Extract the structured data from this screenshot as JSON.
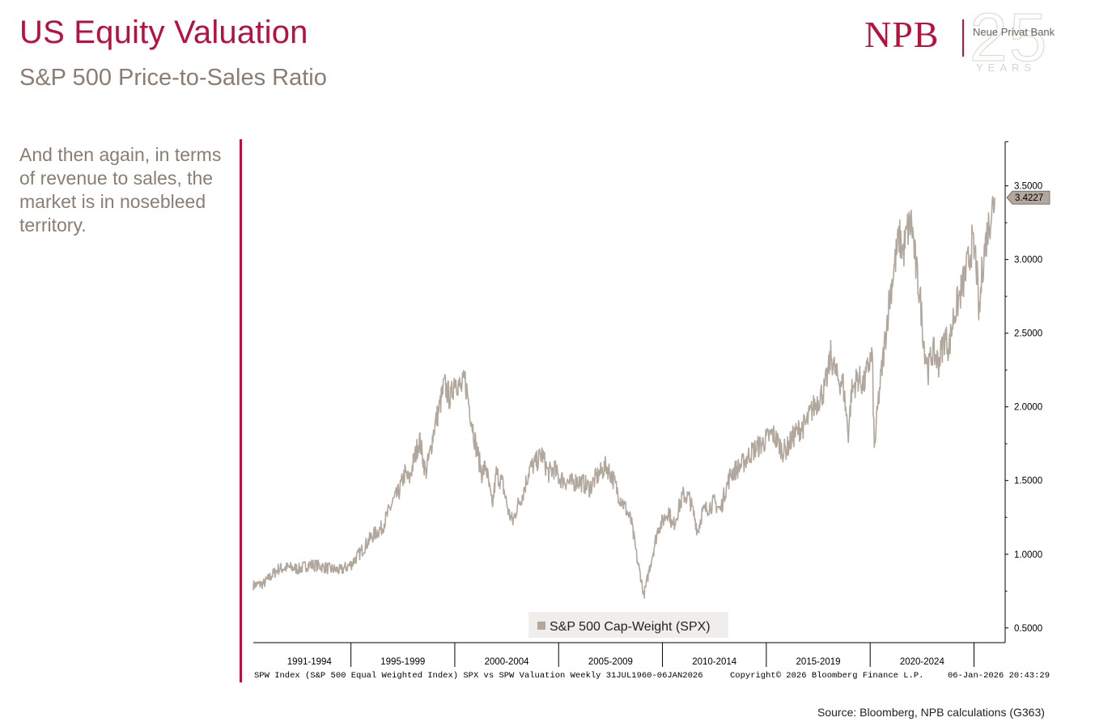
{
  "header": {
    "title": "US Equity Valuation",
    "subtitle": "S&P 500 Price-to-Sales Ratio"
  },
  "logo": {
    "mark": "NPB",
    "bank_name": "Neue Privat Bank",
    "anniversary": "25",
    "years": "YEARS",
    "color": "#b5123e"
  },
  "commentary": "And then again, in terms of revenue to sales, the market is in nosebleed territory.",
  "source": "Source: Bloomberg, NPB calculations (G363)",
  "colors": {
    "accent": "#b5123e",
    "series": "#b2a79d",
    "text_muted": "#8b7d72"
  },
  "chart_data": {
    "type": "line",
    "title": "S&P 500 Price-to-Sales Ratio",
    "xlabel": "",
    "ylabel": "",
    "x_range": [
      1990.3,
      2026.5
    ],
    "ylim": [
      0.4,
      3.8
    ],
    "y_ticks": [
      "3.5000",
      "3.0000",
      "2.5000",
      "2.0000",
      "1.5000",
      "1.0000",
      "0.5000"
    ],
    "y_tick_values": [
      3.5,
      3.0,
      2.5,
      2.0,
      1.5,
      1.0,
      0.5
    ],
    "x_period_labels": [
      "1991-1994",
      "1995-1999",
      "2000-2004",
      "2005-2009",
      "2010-2014",
      "2015-2019",
      "2020-2024"
    ],
    "x_period_starts": [
      1991,
      1995,
      2000,
      2005,
      2010,
      2015,
      2020,
      2025
    ],
    "last_value_label": "3.4227",
    "legend": "S&P 500 Cap-Weight (SPX)",
    "legend_position": "bottom-center",
    "footer_left": "SPW Index (S&P 500 Equal Weighted Index) SPX vs SPW Valuation Weekly 31JUL1960-06JAN2026",
    "footer_center": "Copyright© 2026 Bloomberg Finance L.P.",
    "footer_right": "06-Jan-2026 20:43:29",
    "series": [
      {
        "name": "S&P 500 Cap-Weight (SPX)",
        "x": [
          1990.3,
          1990.8,
          1991.0,
          1991.5,
          1992.0,
          1992.5,
          1993.0,
          1993.5,
          1994.0,
          1994.5,
          1995.0,
          1995.5,
          1996.0,
          1996.5,
          1997.0,
          1997.3,
          1997.6,
          1997.8,
          1998.0,
          1998.3,
          1998.6,
          1998.8,
          1999.0,
          1999.3,
          1999.5,
          1999.8,
          2000.0,
          2000.3,
          2000.5,
          2000.8,
          2001.0,
          2001.3,
          2001.5,
          2001.8,
          2002.0,
          2002.3,
          2002.6,
          2002.8,
          2003.0,
          2003.3,
          2003.6,
          2003.9,
          2004.2,
          2004.5,
          2004.8,
          2005.0,
          2005.3,
          2005.6,
          2005.9,
          2006.2,
          2006.5,
          2006.8,
          2007.0,
          2007.3,
          2007.6,
          2007.9,
          2008.2,
          2008.5,
          2008.8,
          2008.95,
          2009.1,
          2009.2,
          2009.4,
          2009.6,
          2009.8,
          2010.0,
          2010.3,
          2010.5,
          2010.8,
          2011.0,
          2011.3,
          2011.6,
          2011.7,
          2011.9,
          2012.2,
          2012.5,
          2012.8,
          2013.0,
          2013.3,
          2013.6,
          2013.9,
          2014.2,
          2014.5,
          2014.8,
          2015.0,
          2015.3,
          2015.6,
          2015.8,
          2016.0,
          2016.3,
          2016.6,
          2016.9,
          2017.2,
          2017.5,
          2017.8,
          2018.0,
          2018.1,
          2018.4,
          2018.7,
          2018.95,
          2019.1,
          2019.4,
          2019.7,
          2019.95,
          2020.1,
          2020.2,
          2020.4,
          2020.6,
          2020.9,
          2021.1,
          2021.4,
          2021.6,
          2021.8,
          2022.0,
          2022.2,
          2022.4,
          2022.6,
          2022.8,
          2023.0,
          2023.3,
          2023.6,
          2023.8,
          2024.0,
          2024.3,
          2024.6,
          2024.9,
          2025.1,
          2025.25,
          2025.4,
          2025.6,
          2025.8,
          2026.0
        ],
        "values": [
          0.79,
          0.8,
          0.83,
          0.9,
          0.91,
          0.9,
          0.93,
          0.92,
          0.9,
          0.89,
          0.93,
          1.02,
          1.12,
          1.18,
          1.35,
          1.42,
          1.55,
          1.5,
          1.62,
          1.78,
          1.55,
          1.68,
          1.85,
          2.02,
          2.15,
          2.05,
          2.2,
          2.12,
          2.18,
          1.92,
          1.75,
          1.55,
          1.6,
          1.32,
          1.55,
          1.48,
          1.28,
          1.22,
          1.32,
          1.42,
          1.58,
          1.62,
          1.68,
          1.55,
          1.58,
          1.52,
          1.5,
          1.48,
          1.5,
          1.48,
          1.45,
          1.52,
          1.55,
          1.6,
          1.52,
          1.4,
          1.32,
          1.22,
          0.95,
          0.85,
          0.72,
          0.78,
          0.92,
          1.05,
          1.18,
          1.22,
          1.3,
          1.18,
          1.32,
          1.4,
          1.38,
          1.22,
          1.15,
          1.28,
          1.32,
          1.35,
          1.3,
          1.42,
          1.55,
          1.58,
          1.62,
          1.68,
          1.72,
          1.75,
          1.78,
          1.82,
          1.75,
          1.7,
          1.72,
          1.8,
          1.85,
          1.88,
          1.98,
          2.05,
          2.12,
          2.25,
          2.35,
          2.2,
          2.15,
          1.82,
          2.1,
          2.2,
          2.15,
          2.3,
          2.35,
          1.7,
          2.05,
          2.3,
          2.7,
          2.9,
          3.15,
          3.05,
          3.2,
          3.25,
          2.95,
          2.75,
          2.42,
          2.25,
          2.38,
          2.3,
          2.48,
          2.4,
          2.6,
          2.75,
          2.9,
          3.1,
          3.0,
          2.6,
          2.95,
          3.15,
          3.3,
          3.42
        ]
      }
    ]
  }
}
